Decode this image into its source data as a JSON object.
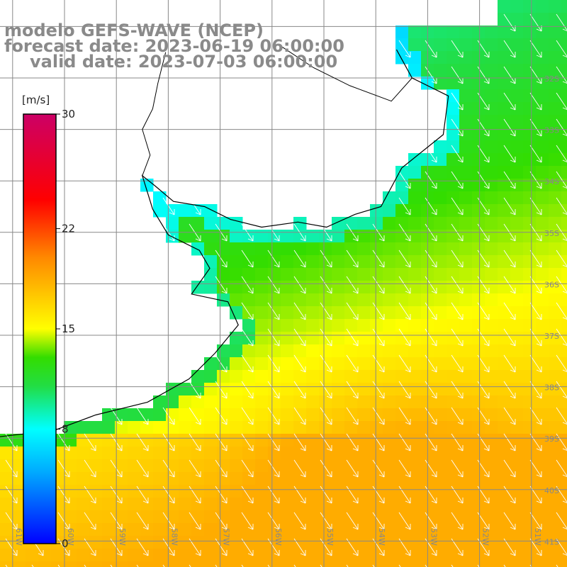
{
  "title": {
    "model": "modelo GEFS-WAVE (NCEP)",
    "forecast": "forecast date: 2023-06-19 06:00:00",
    "valid": "valid date: 2023-07-03 06:00:00"
  },
  "colorbar": {
    "unit": "[m/s]",
    "min": 0,
    "max": 30,
    "ticks": [
      {
        "value": 30,
        "label": "30"
      },
      {
        "value": 22,
        "label": "22"
      },
      {
        "value": 15,
        "label": "15"
      },
      {
        "value": 8,
        "label": "8"
      },
      {
        "value": 0,
        "label": "0"
      }
    ],
    "stops": [
      "#0000ff",
      "#00aaff",
      "#00ffff",
      "#22dd44",
      "#33dd00",
      "#ffff00",
      "#ff8800",
      "#ff0000",
      "#cc0066"
    ]
  },
  "map": {
    "lon_range": [
      -61.5,
      -50.5
    ],
    "lat_range": [
      -41.5,
      -31.5
    ],
    "lon_labels": [
      "61W",
      "60W",
      "59W",
      "58W",
      "57W",
      "56W",
      "55W",
      "54W",
      "53W",
      "52W",
      "51W"
    ],
    "lat_labels": [
      "32S",
      "33S",
      "34S",
      "35S",
      "36S",
      "37S",
      "38S",
      "39S",
      "40S",
      "41S"
    ],
    "grid_color": "#888888",
    "coast_color": "#000000",
    "arrow_color": "#ffffff",
    "wind_direction": "from north-northwest"
  }
}
